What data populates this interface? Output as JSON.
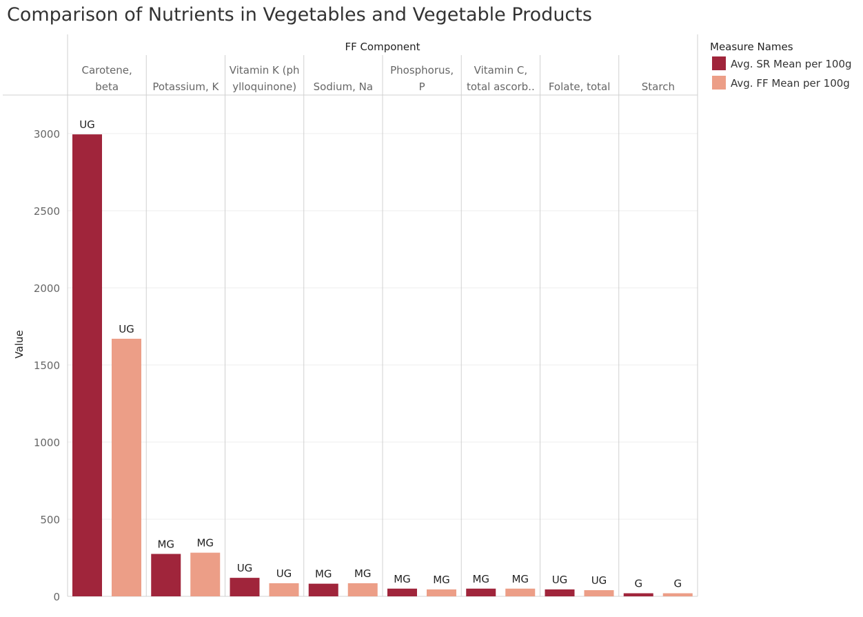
{
  "chart_data": {
    "type": "bar",
    "title": "Comparison of Nutrients in Vegetables and Vegetable Products",
    "column_header": "FF Component",
    "ylabel": "Value",
    "ylim": [
      0,
      3250
    ],
    "yticks": [
      0,
      500,
      1000,
      1500,
      2000,
      2500,
      3000
    ],
    "grid": true,
    "categories": [
      [
        "Carotene,",
        "beta"
      ],
      [
        "Potassium, K"
      ],
      [
        "Vitamin K (ph",
        "ylloquinone)"
      ],
      [
        "Sodium, Na"
      ],
      [
        "Phosphorus,",
        "P"
      ],
      [
        "Vitamin C,",
        "total ascorb.."
      ],
      [
        "Folate, total"
      ],
      [
        "Starch"
      ]
    ],
    "series": [
      {
        "name": "Avg. SR Mean per 100g",
        "color": "#a0253b",
        "values": [
          2995,
          275,
          120,
          82,
          50,
          50,
          45,
          20
        ],
        "labels": [
          "UG",
          "MG",
          "UG",
          "MG",
          "MG",
          "MG",
          "UG",
          "G"
        ]
      },
      {
        "name": "Avg. FF Mean per 100g",
        "color": "#ec9e87",
        "values": [
          1670,
          283,
          85,
          85,
          45,
          50,
          40,
          20
        ],
        "labels": [
          "UG",
          "MG",
          "UG",
          "MG",
          "MG",
          "MG",
          "UG",
          "G"
        ]
      }
    ],
    "legend": {
      "title": "Measure Names",
      "position": "right"
    }
  }
}
